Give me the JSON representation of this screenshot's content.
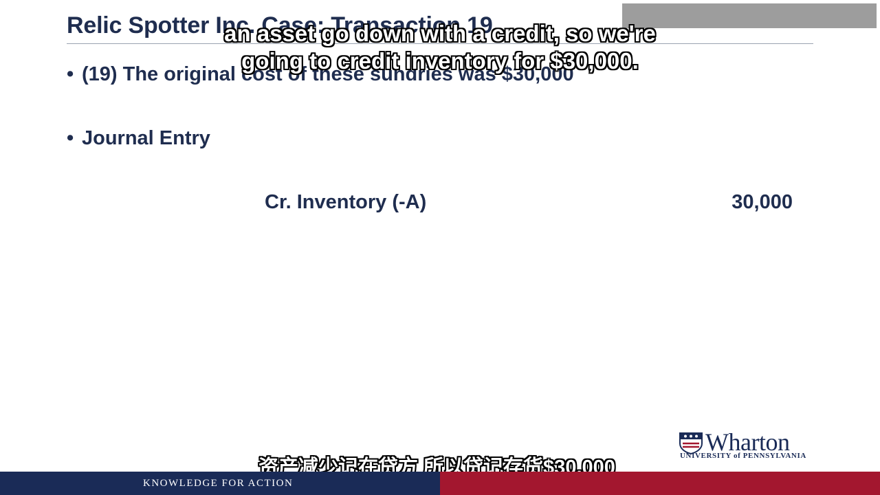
{
  "slide": {
    "title": "Relic Spotter Inc. Case: Transaction 19",
    "bullets": [
      {
        "marker": "•",
        "text": "(19) The original cost of these sundries was $30,000"
      },
      {
        "marker": "•",
        "text": "Journal Entry"
      }
    ],
    "journal_entry": {
      "account": "Cr. Inventory (-A)",
      "amount": "30,000"
    }
  },
  "subtitles": {
    "english_line_1": "an asset go down with a credit, so we're",
    "english_line_2": "going to credit inventory for $30,000.",
    "chinese": "资产减少记在贷方 所以贷记存货$30,000"
  },
  "logo": {
    "wordmark": "Wharton",
    "subline": "UNIVERSITY of PENNSYLVANIA",
    "icon": "penn-shield-icon"
  },
  "footer": {
    "tagline": "KNOWLEDGE FOR ACTION"
  },
  "colors": {
    "navy": "#1a2b57",
    "crimson": "#a3172f",
    "text": "#1f2d4f"
  }
}
